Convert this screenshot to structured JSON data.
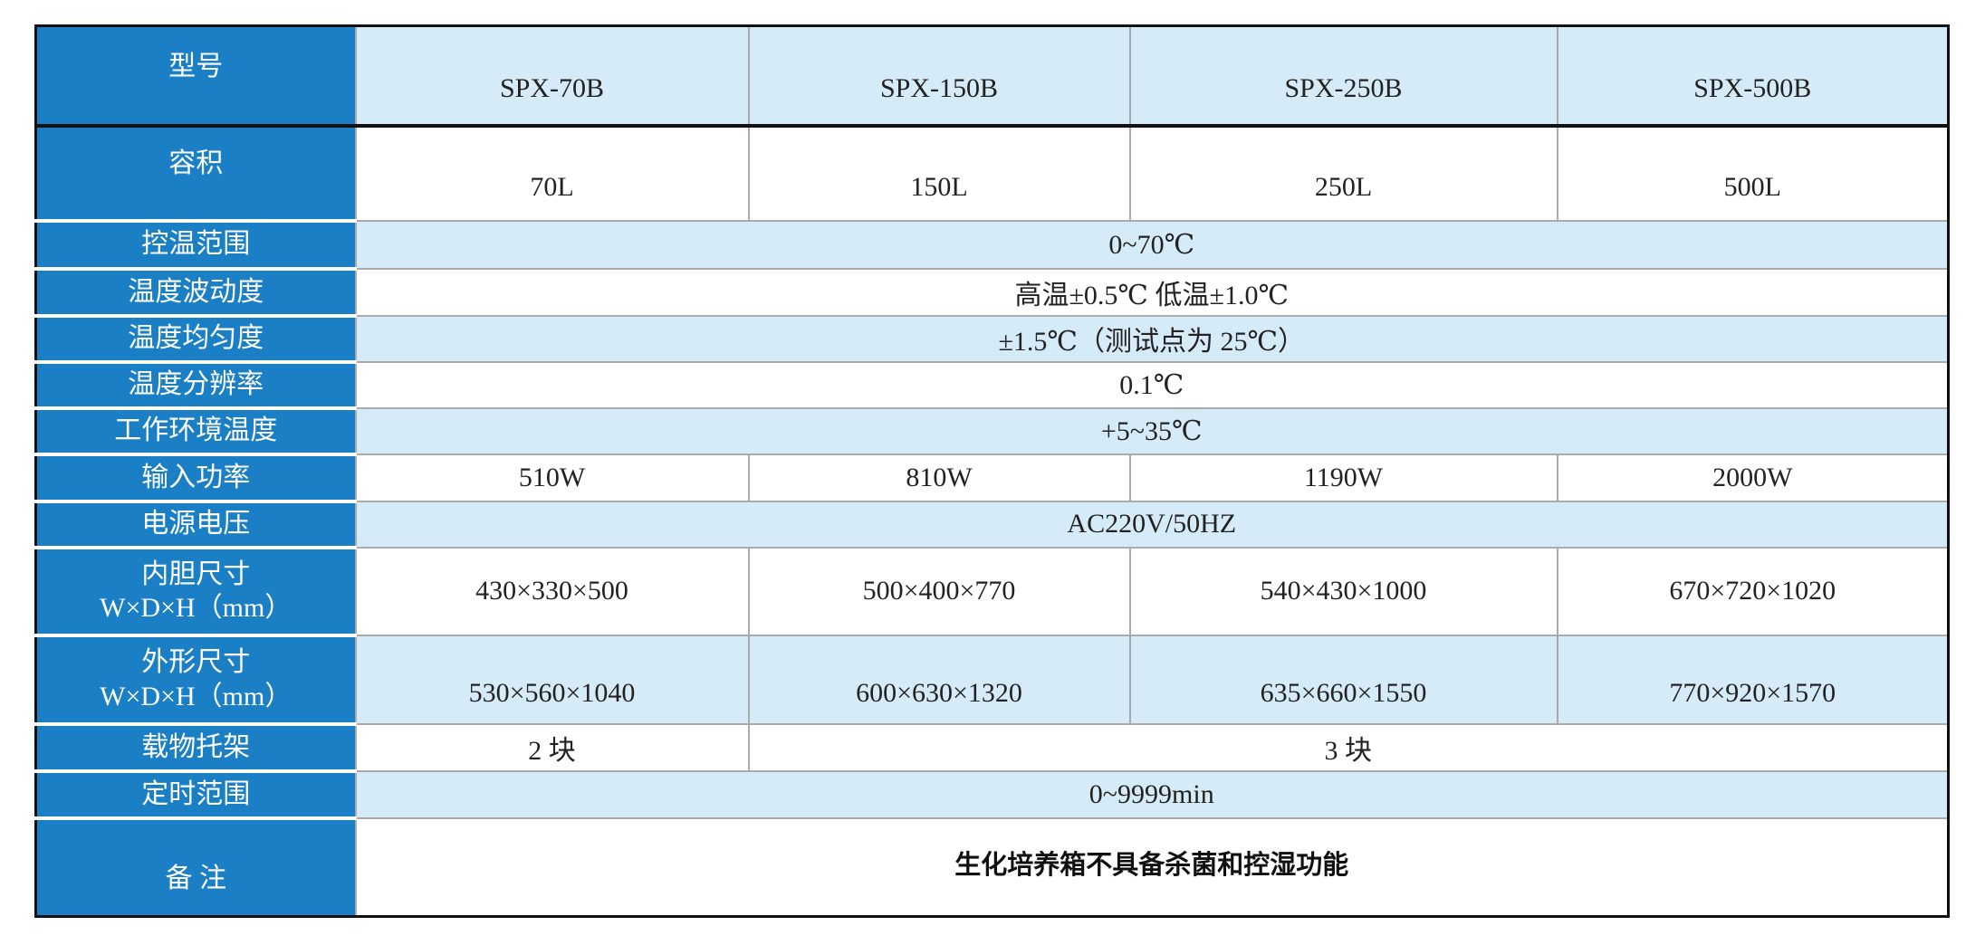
{
  "header": {
    "label": "型号",
    "models": [
      "SPX-70B",
      "SPX-150B",
      "SPX-250B",
      "SPX-500B"
    ]
  },
  "rows": {
    "volume": {
      "label": "容积",
      "values": [
        "70L",
        "150L",
        "250L",
        "500L"
      ]
    },
    "temp_range": {
      "label": "控温范围",
      "value": "0~70℃"
    },
    "fluctuation": {
      "label": "温度波动度",
      "value": "高温±0.5℃ 低温±1.0℃"
    },
    "uniformity": {
      "label": "温度均匀度",
      "value": "±1.5℃（测试点为 25℃）"
    },
    "resolution": {
      "label": "温度分辨率",
      "value": "0.1℃"
    },
    "ambient": {
      "label": "工作环境温度",
      "value": "+5~35℃"
    },
    "power": {
      "label": "输入功率",
      "values": [
        "510W",
        "810W",
        "1190W",
        "2000W"
      ]
    },
    "voltage": {
      "label": "电源电压",
      "value": "AC220V/50HZ"
    },
    "inner": {
      "label": "内胆尺寸",
      "unit": "W×D×H（mm）",
      "values": [
        "430×330×500",
        "500×400×770",
        "540×430×1000",
        "670×720×1020"
      ]
    },
    "outer": {
      "label": "外形尺寸",
      "unit": "W×D×H（mm）",
      "values": [
        "530×560×1040",
        "600×630×1320",
        "635×660×1550",
        "770×920×1570"
      ]
    },
    "shelves": {
      "label": "载物托架",
      "values": [
        "2 块",
        "3 块"
      ]
    },
    "timer": {
      "label": "定时范围",
      "value": "0~9999min"
    },
    "remarks": {
      "label": "备 注",
      "value": "生化培养箱不具备杀菌和控湿功能"
    }
  },
  "colors": {
    "label_bg": "#1a7fc4",
    "alt_row_bg": "#d5ebf8"
  }
}
